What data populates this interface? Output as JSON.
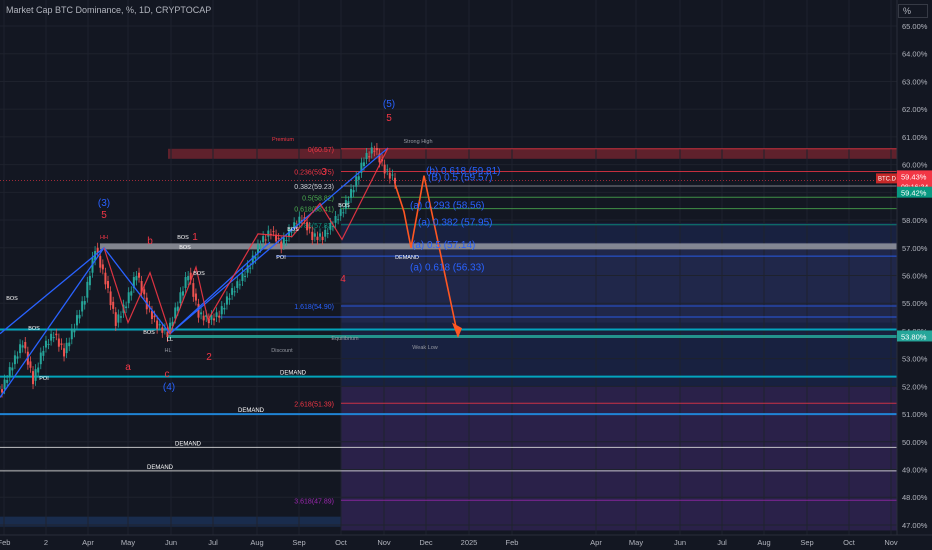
{
  "header": {
    "title": "Market Cap BTC Dominance, %, 1D, CRYPTOCAP",
    "unit": "%"
  },
  "colors": {
    "background": "#131722",
    "axis_text": "#b2b5be",
    "candle_up": "#26a69a",
    "candle_down": "#ef5350",
    "wave_line": "#2962ff",
    "wave_label_blue": "#2962ff",
    "wave_label_red": "#f23645",
    "fib_text": "#2962ff",
    "demand": "#00bcd4",
    "projection_arrow": "#ff5722"
  },
  "chart_data": {
    "type": "candlestick",
    "title": "Market Cap BTC Dominance, %, 1D, CRYPTOCAP",
    "x_ticks": [
      "Feb",
      "2",
      "Apr",
      "May",
      "Jun",
      "Jul",
      "Aug",
      "Sep",
      "Oct",
      "Nov",
      "Dec",
      "2025",
      "Feb",
      "Apr",
      "May",
      "Jun",
      "Jul",
      "Aug",
      "Sep",
      "Oct",
      "Nov"
    ],
    "y_ticks": [
      "65.00%",
      "64.00%",
      "63.00%",
      "62.00%",
      "61.00%",
      "60.00%",
      "59.00%",
      "58.00%",
      "57.00%",
      "56.00%",
      "55.00%",
      "54.00%",
      "53.00%",
      "52.00%",
      "51.00%",
      "50.00%",
      "49.00%",
      "48.00%",
      "47.00%"
    ],
    "ylim": [
      46.8,
      65.5
    ],
    "price_label": "59.43%",
    "symbol_tag": "BTC.D",
    "countdown": "08:16:34",
    "right_labels": [
      "59.42%",
      "53.80%"
    ],
    "price_path": [
      {
        "x": "Feb",
        "y": 51.9
      },
      {
        "x": "Feb",
        "y": 52.8
      },
      {
        "x": "Feb",
        "y": 53.6
      },
      {
        "x": "2",
        "y": 52.2
      },
      {
        "x": "2",
        "y": 53.4
      },
      {
        "x": "2",
        "y": 53.9
      },
      {
        "x": "2",
        "y": 53.2
      },
      {
        "x": "2",
        "y": 54.2
      },
      {
        "x": "Apr",
        "y": 55.2
      },
      {
        "x": "Apr",
        "y": 57.0
      },
      {
        "x": "Apr",
        "y": 55.8
      },
      {
        "x": "May",
        "y": 54.3
      },
      {
        "x": "May",
        "y": 55.0
      },
      {
        "x": "May",
        "y": 56.1
      },
      {
        "x": "May",
        "y": 54.9
      },
      {
        "x": "Jun",
        "y": 54.2
      },
      {
        "x": "Jun",
        "y": 53.9
      },
      {
        "x": "Jun",
        "y": 55.0
      },
      {
        "x": "Jun",
        "y": 56.1
      },
      {
        "x": "Jun",
        "y": 54.6
      },
      {
        "x": "Jul",
        "y": 54.4
      },
      {
        "x": "Jul",
        "y": 54.6
      },
      {
        "x": "Jul",
        "y": 55.3
      },
      {
        "x": "Jul",
        "y": 55.8
      },
      {
        "x": "Aug",
        "y": 56.4
      },
      {
        "x": "Aug",
        "y": 57.2
      },
      {
        "x": "Aug",
        "y": 57.6
      },
      {
        "x": "Sep",
        "y": 57.1
      },
      {
        "x": "Sep",
        "y": 57.7
      },
      {
        "x": "Sep",
        "y": 58.1
      },
      {
        "x": "Sep",
        "y": 57.4
      },
      {
        "x": "Oct",
        "y": 57.4
      },
      {
        "x": "Oct",
        "y": 57.9
      },
      {
        "x": "Oct",
        "y": 58.4
      },
      {
        "x": "Oct",
        "y": 59.2
      },
      {
        "x": "Nov",
        "y": 60.2
      },
      {
        "x": "Nov",
        "y": 60.6
      },
      {
        "x": "Nov",
        "y": 59.8
      },
      {
        "x": "Nov",
        "y": 59.43
      }
    ],
    "fib_levels": [
      {
        "label": "0(60.57)",
        "value": 60.57
      },
      {
        "label": "0.236(59.75)",
        "value": 59.75
      },
      {
        "label": "0.382(59.23)",
        "value": 59.23
      },
      {
        "label": "0.5(58.82)",
        "value": 58.82
      },
      {
        "label": "0.618(58.41)",
        "value": 58.41
      },
      {
        "label": "0.786(57.83)",
        "value": 57.83
      },
      {
        "label": "1.618(54.90)",
        "value": 54.9
      },
      {
        "label": "2.618(51.39)",
        "value": 51.39
      },
      {
        "label": "3.618(47.89)",
        "value": 47.89
      }
    ],
    "wave_fib_labels": [
      {
        "label": "(b) 0.618 (59.81)",
        "value": 59.81
      },
      {
        "label": "(B) 0.5 (59.57)",
        "value": 59.57
      },
      {
        "label": "(a) 0.293 (58.56)",
        "value": 58.56
      },
      {
        "label": "(a) 0.382 (57.95)",
        "value": 57.95
      },
      {
        "label": "(a) 0.5 (57.14)",
        "value": 57.14
      },
      {
        "label": "(a) 0.618 (56.33)",
        "value": 56.33
      }
    ],
    "zone_labels": [
      "Premium",
      "Discount",
      "Strong High",
      "Weak Low",
      "Equilibrium",
      "DEMAND",
      "POI",
      "HH",
      "HL",
      "LL",
      "BOS"
    ],
    "wave_labels": [
      "(5)",
      "5",
      "(3)",
      "5",
      "(4)",
      "c",
      "a",
      "b",
      "1",
      "2",
      "3",
      "4"
    ],
    "projection": {
      "target_value": 53.8,
      "target_x": "Dec"
    }
  }
}
